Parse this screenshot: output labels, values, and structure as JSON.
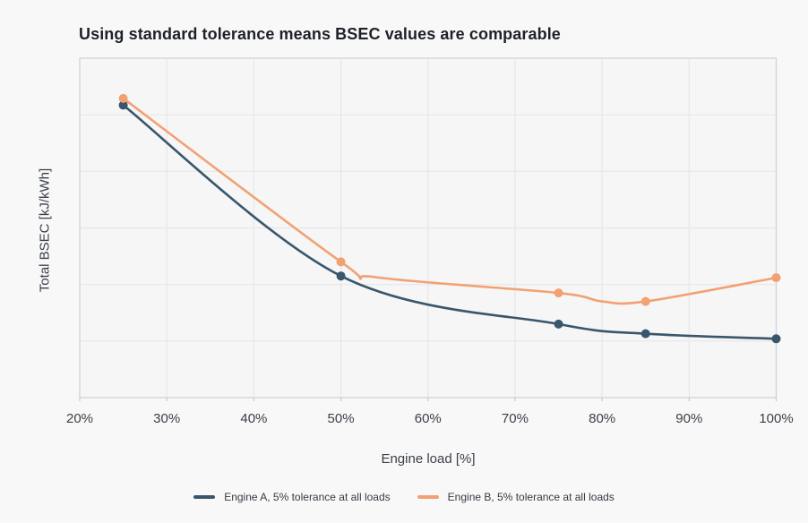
{
  "title": "Using standard tolerance means BSEC values are comparable",
  "chart_data": {
    "type": "line",
    "title": "Using standard tolerance means BSEC values are comparable",
    "xlabel": "Engine load [%]",
    "ylabel": "Total BSEC [kJ/kWh]",
    "x_tick_labels": [
      "20%",
      "30%",
      "40%",
      "50%",
      "60%",
      "70%",
      "80%",
      "90%",
      "100%"
    ],
    "x_tick_values": [
      20,
      30,
      40,
      50,
      60,
      70,
      80,
      90,
      100
    ],
    "xlim": [
      20,
      100
    ],
    "ylim": [
      0,
      6
    ],
    "grid": true,
    "y_axis_note": "y-axis shows no tick labels; y values are estimated in relative grid units (0 = bottom axis line, 6 = top axis line, one unit per horizontal gridline)",
    "legend_position": "bottom-center",
    "series": [
      {
        "id": "engine-a",
        "name": "Engine A, 5% tolerance at all loads",
        "color": "#39566b",
        "line_shape": "spline",
        "x": [
          25,
          50,
          75,
          85,
          100
        ],
        "y": [
          5.17,
          2.15,
          1.3,
          1.13,
          1.04
        ],
        "line_vertices": {
          "x": [
            25,
            50,
            75,
            85,
            100
          ],
          "y": [
            5.17,
            2.15,
            1.3,
            1.13,
            1.04
          ]
        }
      },
      {
        "id": "engine-b",
        "name": "Engine B, 5% tolerance at all loads",
        "color": "#f2a173",
        "line_shape": "spline",
        "x": [
          25,
          50,
          75,
          85,
          100
        ],
        "y": [
          5.29,
          2.4,
          1.85,
          1.7,
          2.12
        ],
        "line_vertices": {
          "x": [
            25,
            50,
            54,
            75,
            80,
            85,
            100
          ],
          "y": [
            5.29,
            2.4,
            2.13,
            1.85,
            1.7,
            1.7,
            2.12
          ]
        }
      }
    ]
  },
  "colors": {
    "page_background": "#f8f8f9",
    "plot_background": "#f6f6f7",
    "gridline": "#e6e7e9",
    "plot_border": "#d0d3d6",
    "tick_mark": "#c6cace",
    "title_text": "#1e2228",
    "axis_text": "#3b4046",
    "legend_text": "#353b41",
    "series_engine_a": "#39566b",
    "series_engine_b": "#f2a173"
  }
}
